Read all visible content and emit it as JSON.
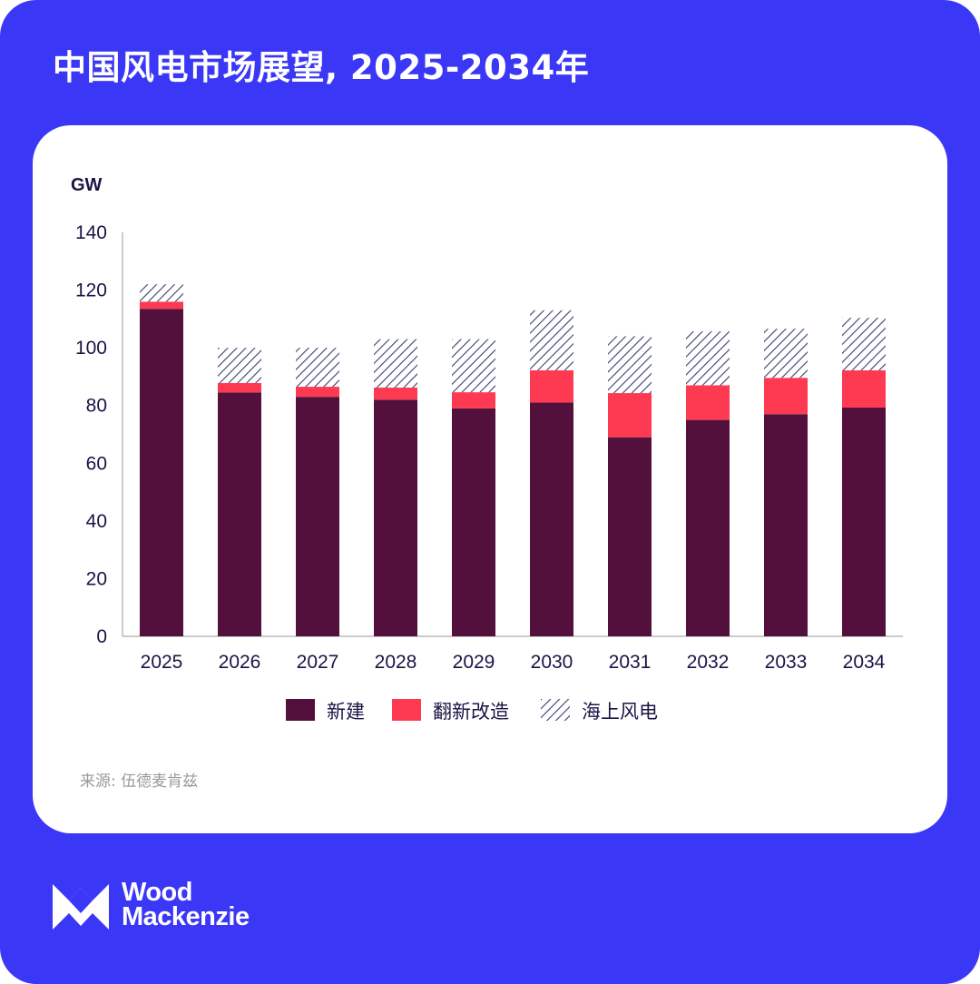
{
  "title": "中国风电市场展望, 2025-2034年",
  "source": "来源: 伍德麦肯兹",
  "logo": {
    "line1": "Wood",
    "line2": "Mackenzie"
  },
  "colors": {
    "background": "#3b37f6",
    "new_build": "#53103c",
    "repowering": "#fd3a52",
    "offshore_hatch": "#3a3f6e"
  },
  "chart_data": {
    "type": "bar",
    "stacked": true,
    "ylabel": "GW",
    "ylim": [
      0,
      140
    ],
    "yticks": [
      0,
      20,
      40,
      60,
      80,
      100,
      120,
      140
    ],
    "categories": [
      "2025",
      "2026",
      "2027",
      "2028",
      "2029",
      "2030",
      "2031",
      "2032",
      "2033",
      "2034"
    ],
    "series": [
      {
        "name": "新建",
        "color": "#53103c",
        "values": [
          113.5,
          84.5,
          83,
          82,
          79,
          81,
          69,
          75,
          77,
          79.3
        ]
      },
      {
        "name": "翻新改造",
        "color": "#fd3a52",
        "values": [
          2.5,
          3.3,
          3.5,
          4.2,
          5.6,
          11.2,
          15.3,
          12,
          12.6,
          12.9
        ]
      },
      {
        "name": "海上风电",
        "pattern": "hatch",
        "values": [
          6,
          12.2,
          13.5,
          16.8,
          18.4,
          20.8,
          19.7,
          18.7,
          17,
          18.2
        ]
      }
    ],
    "grid": false,
    "legend": "bottom"
  }
}
